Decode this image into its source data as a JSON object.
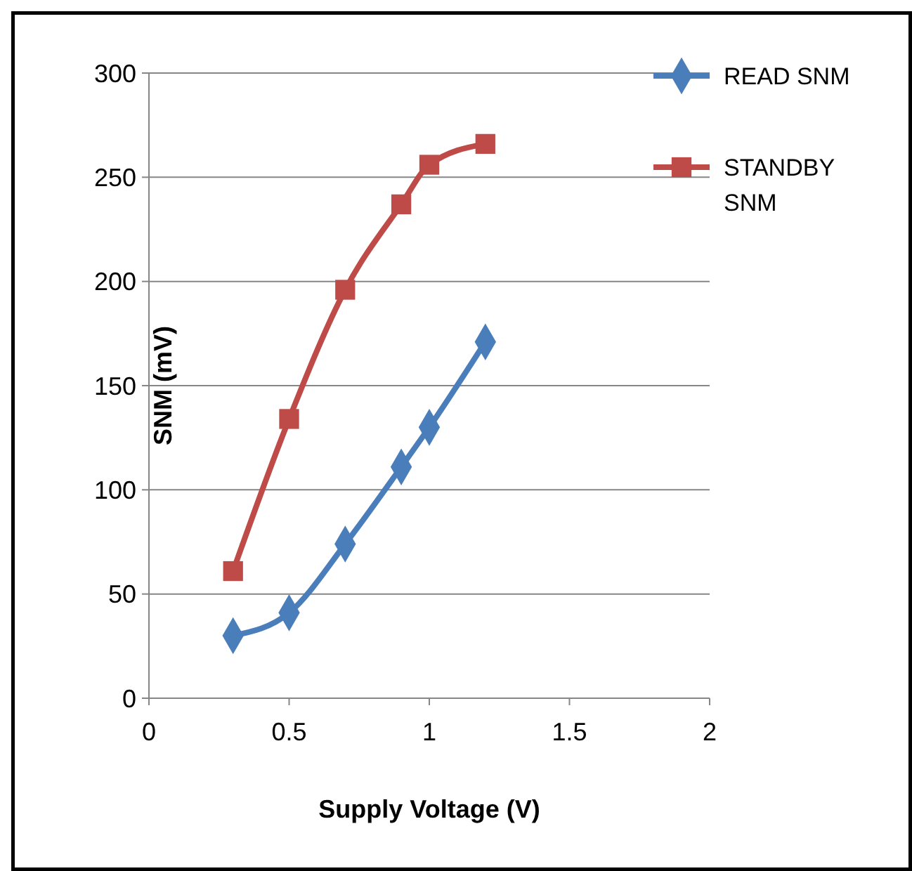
{
  "chart_data": {
    "type": "line",
    "xlabel": "Supply Voltage (V)",
    "ylabel": "SNM (mV)",
    "x": [
      0.3,
      0.5,
      0.7,
      0.9,
      1.0,
      1.2
    ],
    "series": [
      {
        "name": "READ SNM",
        "color": "#4a7ebb",
        "marker": "diamond",
        "values": [
          30,
          41,
          74,
          111,
          130,
          171
        ]
      },
      {
        "name": "STANDBY SNM",
        "color": "#be4b48",
        "marker": "square",
        "values": [
          61,
          134,
          196,
          237,
          256,
          266
        ]
      }
    ],
    "xlim": [
      0,
      2
    ],
    "xticks": [
      0,
      0.5,
      1,
      1.5,
      2
    ],
    "ylim": [
      0,
      300
    ],
    "yticks": [
      0,
      50,
      100,
      150,
      200,
      250,
      300
    ],
    "grid": "y",
    "legend": "right",
    "line_style": "solid"
  }
}
